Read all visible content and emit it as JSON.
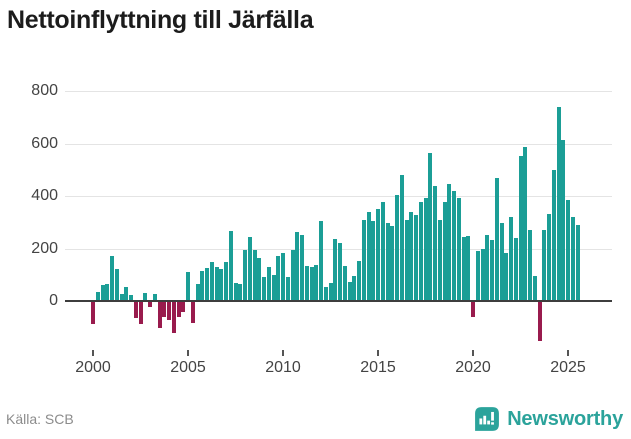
{
  "title": "Nettoinflyttning till Järfälla",
  "footer": {
    "source_label": "Källa: SCB",
    "brand": "Newsworthy"
  },
  "colors": {
    "positive": "#1b9e96",
    "negative": "#991b4d",
    "grid": "#e4e4e4",
    "axis_line": "#3d3d3d",
    "brand_teal": "#2ba39b"
  },
  "chart_data": {
    "type": "bar",
    "title": "Nettoinflyttning till Järfälla",
    "frequency": "quarterly",
    "start_year": 2000,
    "start_quarter": 1,
    "x_ticks": [
      "2000",
      "2005",
      "2010",
      "2015",
      "2020",
      "2025"
    ],
    "y_ticks": [
      0,
      200,
      400,
      600,
      800
    ],
    "ylim": [
      -160,
      800
    ],
    "grid": true,
    "values": [
      -85,
      29,
      59,
      61,
      169,
      118,
      23,
      51,
      19,
      -60,
      -85,
      27,
      -18,
      22,
      -98,
      -56,
      -69,
      -117,
      -56,
      -40,
      107,
      -79,
      60,
      111,
      121,
      144,
      127,
      118,
      146,
      264,
      64,
      60,
      192,
      240,
      190,
      160,
      89,
      127,
      95,
      169,
      180,
      88,
      191,
      261,
      248,
      129,
      125,
      135,
      301,
      49,
      64,
      233,
      217,
      129,
      67,
      92,
      147,
      307,
      337,
      301,
      346,
      375,
      295,
      283,
      401,
      478,
      305,
      336,
      324,
      373,
      391,
      560,
      435,
      305,
      373,
      444,
      416,
      388,
      240,
      245,
      -59,
      186,
      195,
      249,
      230,
      466,
      295,
      179,
      315,
      236,
      550,
      584,
      267,
      92,
      -147,
      267,
      330,
      497,
      738,
      612,
      383,
      318,
      286
    ]
  }
}
